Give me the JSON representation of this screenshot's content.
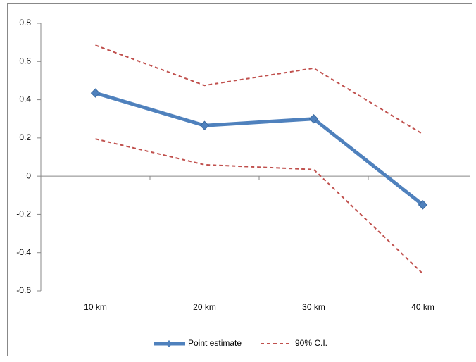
{
  "chart_data": {
    "type": "line",
    "categories": [
      "10 km",
      "20 km",
      "30 km",
      "40 km"
    ],
    "series": [
      {
        "name": "Point estimate",
        "color": "#4f81bd",
        "values": [
          0.435,
          0.265,
          0.3,
          -0.15
        ]
      },
      {
        "name": "90% C.I.",
        "color": "#c0504d",
        "values": [
          0.685,
          0.475,
          0.565,
          0.22
        ],
        "lower": [
          0.195,
          0.06,
          0.035,
          -0.51
        ]
      }
    ],
    "ylim": [
      -0.6,
      0.8
    ],
    "yticks": [
      -0.6,
      -0.4,
      -0.2,
      0,
      0.2,
      0.4,
      0.6,
      0.8
    ],
    "grid": false,
    "legend": "bottom"
  }
}
